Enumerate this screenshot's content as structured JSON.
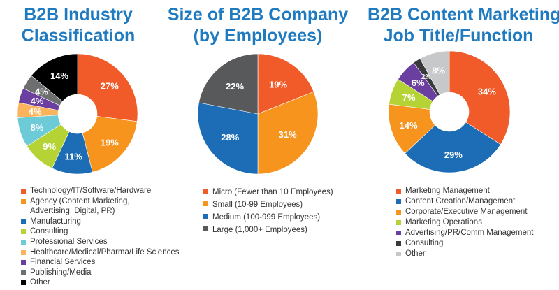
{
  "chart_data": [
    {
      "type": "pie",
      "donut": true,
      "title": [
        "B2B Industry",
        "Classification"
      ],
      "categories": [
        "Technology/IT/Software/Hardware",
        "Agency (Content Marketing, Advertising, Digital, PR)",
        "Manufacturing",
        "Consulting",
        "Professional Services",
        "Healthcare/Medical/Pharma/Life Sciences",
        "Financial Services",
        "Publishing/Media",
        "Other"
      ],
      "legend_lines": [
        [
          "Technology/IT/Software/Hardware"
        ],
        [
          "Agency (Content Marketing,",
          "Advertising, Digital, PR)"
        ],
        [
          "Manufacturing"
        ],
        [
          "Consulting"
        ],
        [
          "Professional Services"
        ],
        [
          "Healthcare/Medical/Pharma/Life Sciences"
        ],
        [
          "Financial Services"
        ],
        [
          "Publishing/Media"
        ],
        [
          "Other"
        ]
      ],
      "values": [
        27,
        19,
        11,
        9,
        8,
        4,
        4,
        4,
        14
      ],
      "labels": [
        "27%",
        "19%",
        "11%",
        "9%",
        "8%",
        "4%",
        "4%",
        "4%",
        "14%"
      ],
      "colors": [
        "#f15a29",
        "#f7941d",
        "#1c6db5",
        "#b5d334",
        "#6dcbd8",
        "#fbb45c",
        "#6a3fa0",
        "#6d6e70",
        "#000000"
      ],
      "legend_placement": "bottom"
    },
    {
      "type": "pie",
      "donut": false,
      "title": [
        "Size of B2B Company",
        "(by Employees)"
      ],
      "categories": [
        "Micro (Fewer than 10 Employees)",
        "Small (10-99 Employees)",
        "Medium (100-999 Employees)",
        "Large (1,000+ Employees)"
      ],
      "legend_lines": [
        [
          "Micro (Fewer than 10 Employees)"
        ],
        [
          "Small (10-99 Employees)"
        ],
        [
          "Medium (100-999 Employees)"
        ],
        [
          "Large (1,000+ Employees)"
        ]
      ],
      "values": [
        19,
        31,
        28,
        22
      ],
      "labels": [
        "19%",
        "31%",
        "28%",
        "22%"
      ],
      "colors": [
        "#f15a29",
        "#f7941d",
        "#1c6db5",
        "#58595b"
      ],
      "legend_placement": "bottom"
    },
    {
      "type": "pie",
      "donut": true,
      "title": [
        "B2B Content Marketing",
        "Job Title/Function"
      ],
      "categories": [
        "Marketing Management",
        "Content Creation/Management",
        "Corporate/Executive Management",
        "Marketing Operations",
        "Advertising/PR/Comm Management",
        "Consulting",
        "Other"
      ],
      "legend_lines": [
        [
          "Marketing Management"
        ],
        [
          "Content Creation/Management"
        ],
        [
          "Corporate/Executive Management"
        ],
        [
          "Marketing Operations"
        ],
        [
          "Advertising/PR/Comm Management"
        ],
        [
          "Consulting"
        ],
        [
          "Other"
        ]
      ],
      "values": [
        34,
        29,
        14,
        7,
        6,
        2,
        8
      ],
      "labels": [
        "34%",
        "29%",
        "14%",
        "7%",
        "6%",
        "2%",
        "8%"
      ],
      "colors": [
        "#f15a29",
        "#1c6db5",
        "#f7941d",
        "#b5d334",
        "#6a3fa0",
        "#3a3a3c",
        "#c7c8ca"
      ],
      "legend_placement": "bottom"
    }
  ]
}
